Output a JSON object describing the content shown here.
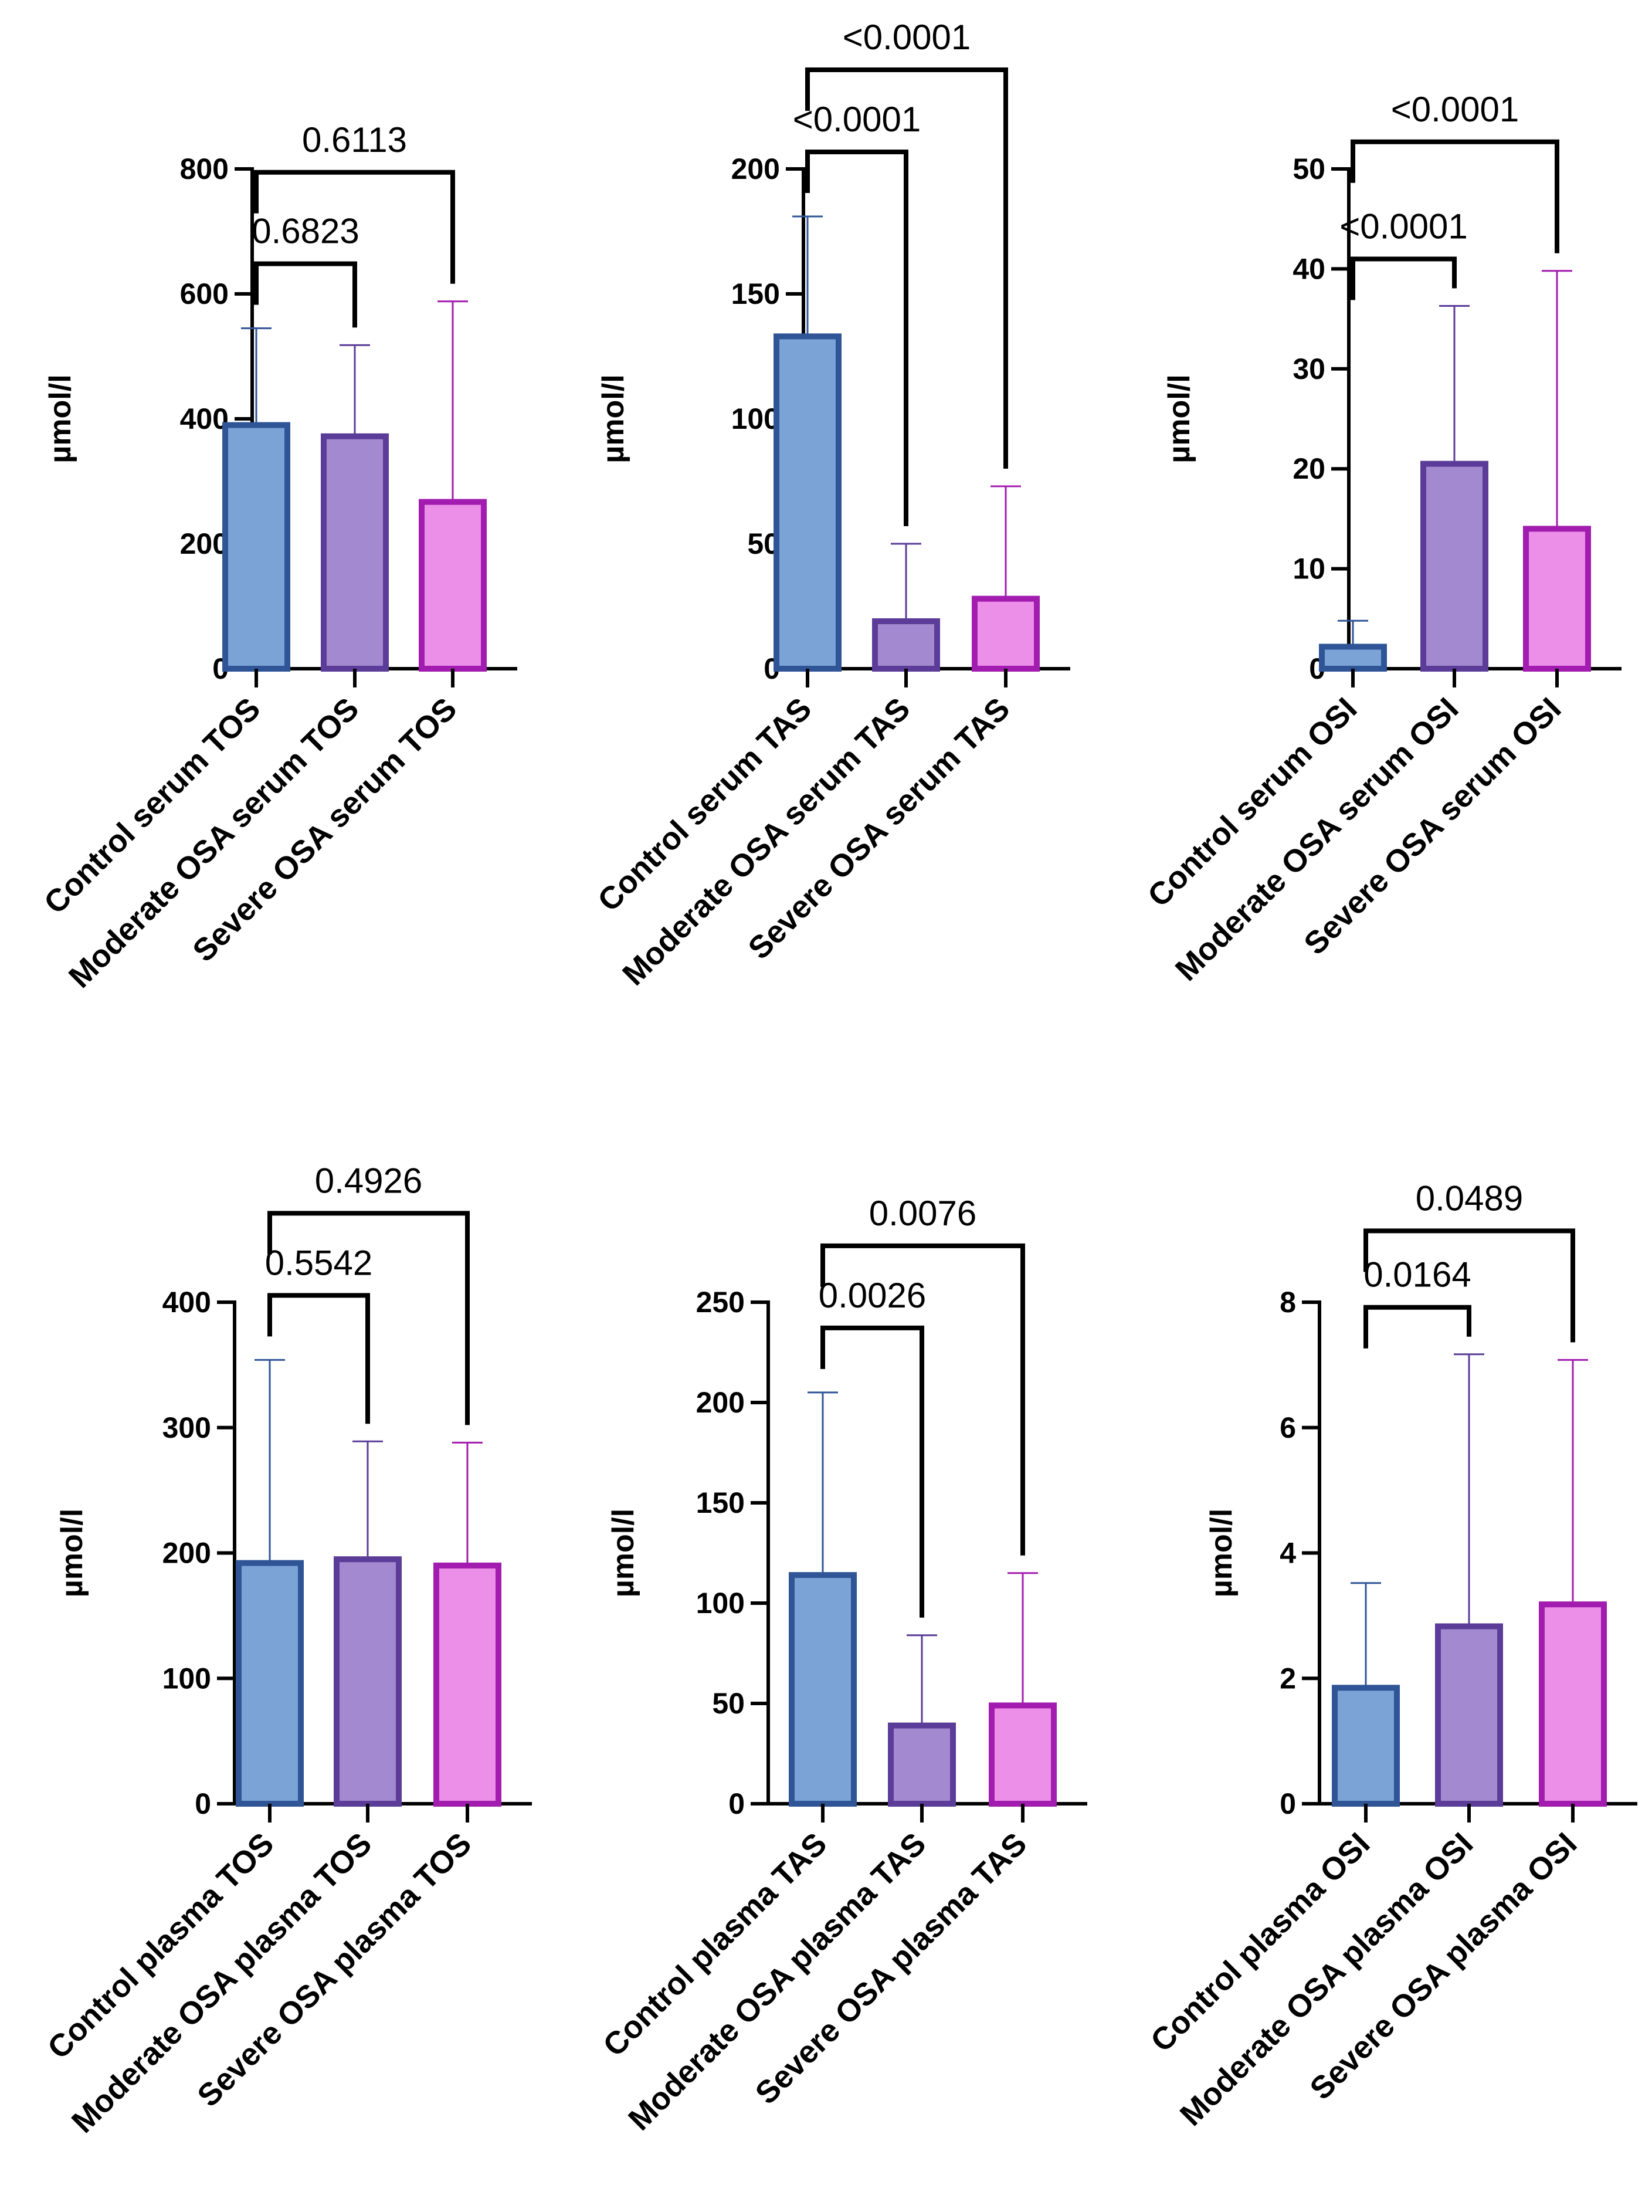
{
  "colors": {
    "axis": "#000000",
    "bracket": "#000000",
    "groups": [
      {
        "fill": "#7ba3d6",
        "stroke": "#2f5597"
      },
      {
        "fill": "#a38ad0",
        "stroke": "#5b3c98"
      },
      {
        "fill": "#ec8fe8",
        "stroke": "#a21caf"
      }
    ]
  },
  "chart_data": [
    {
      "type": "bar",
      "panel": "top-left",
      "ylabel": "µmol/l",
      "ylim": [
        0,
        800
      ],
      "yticks": [
        0,
        200,
        400,
        600,
        800
      ],
      "categories": [
        "Control serum TOS",
        "Moderate OSA serum TOS",
        "Severe OSA serum TOS"
      ],
      "values": [
        390,
        372,
        267
      ],
      "error_upper": [
        545,
        518,
        588
      ],
      "comparisons": [
        {
          "groups": [
            0,
            1
          ],
          "p": "0.6823"
        },
        {
          "groups": [
            0,
            2
          ],
          "p": "0.6113"
        }
      ]
    },
    {
      "type": "bar",
      "panel": "top-center",
      "ylabel": "µmol/l",
      "ylim": [
        0,
        200
      ],
      "yticks": [
        0,
        50,
        100,
        150,
        200
      ],
      "categories": [
        "Control serum TAS",
        "Moderate OSA serum TAS",
        "Severe OSA serum TAS"
      ],
      "values": [
        133,
        19,
        28
      ],
      "error_upper": [
        181,
        50,
        73
      ],
      "comparisons": [
        {
          "groups": [
            0,
            1
          ],
          "p": "<0.0001"
        },
        {
          "groups": [
            0,
            2
          ],
          "p": "<0.0001"
        }
      ]
    },
    {
      "type": "bar",
      "panel": "top-right",
      "ylabel": "µmol/l",
      "ylim": [
        0,
        50
      ],
      "yticks": [
        0,
        10,
        20,
        30,
        40,
        50
      ],
      "categories": [
        "Control serum OSI",
        "Moderate OSA serum OSI",
        "Severe OSA serum OSI"
      ],
      "values": [
        2.2,
        20.5,
        14
      ],
      "error_upper": [
        4.8,
        36.3,
        39.8
      ],
      "comparisons": [
        {
          "groups": [
            0,
            1
          ],
          "p": "<0.0001"
        },
        {
          "groups": [
            0,
            2
          ],
          "p": "<0.0001"
        }
      ]
    },
    {
      "type": "bar",
      "panel": "bottom-left",
      "ylabel": "µmol/l",
      "ylim": [
        0,
        400
      ],
      "yticks": [
        0,
        100,
        200,
        300,
        400
      ],
      "categories": [
        "Control plasma TOS",
        "Moderate OSA plasma TOS",
        "Severe OSA plasma TOS"
      ],
      "values": [
        192,
        195,
        190
      ],
      "error_upper": [
        354,
        289,
        288
      ],
      "comparisons": [
        {
          "groups": [
            0,
            1
          ],
          "p": "0.5542"
        },
        {
          "groups": [
            0,
            2
          ],
          "p": "0.4926"
        }
      ]
    },
    {
      "type": "bar",
      "panel": "bottom-center",
      "ylabel": "µmol/l",
      "ylim": [
        0,
        250
      ],
      "yticks": [
        0,
        50,
        100,
        150,
        200,
        250
      ],
      "categories": [
        "Control plasma TAS",
        "Moderate OSA plasma TAS",
        "Severe OSA plasma TAS"
      ],
      "values": [
        114,
        39,
        49
      ],
      "error_upper": [
        205,
        84,
        115
      ],
      "comparisons": [
        {
          "groups": [
            0,
            1
          ],
          "p": "0.0026"
        },
        {
          "groups": [
            0,
            2
          ],
          "p": "0.0076"
        }
      ]
    },
    {
      "type": "bar",
      "panel": "bottom-right",
      "ylabel": "µmol/l",
      "ylim": [
        0,
        8
      ],
      "yticks": [
        0,
        2,
        4,
        6,
        8
      ],
      "categories": [
        "Control plasma OSI",
        "Moderate OSA plasma OSI",
        "Severe OSA plasma OSI"
      ],
      "values": [
        1.85,
        2.83,
        3.18
      ],
      "error_upper": [
        3.52,
        7.17,
        7.08
      ],
      "comparisons": [
        {
          "groups": [
            0,
            1
          ],
          "p": "0.0164"
        },
        {
          "groups": [
            0,
            2
          ],
          "p": "0.0489"
        }
      ]
    }
  ]
}
